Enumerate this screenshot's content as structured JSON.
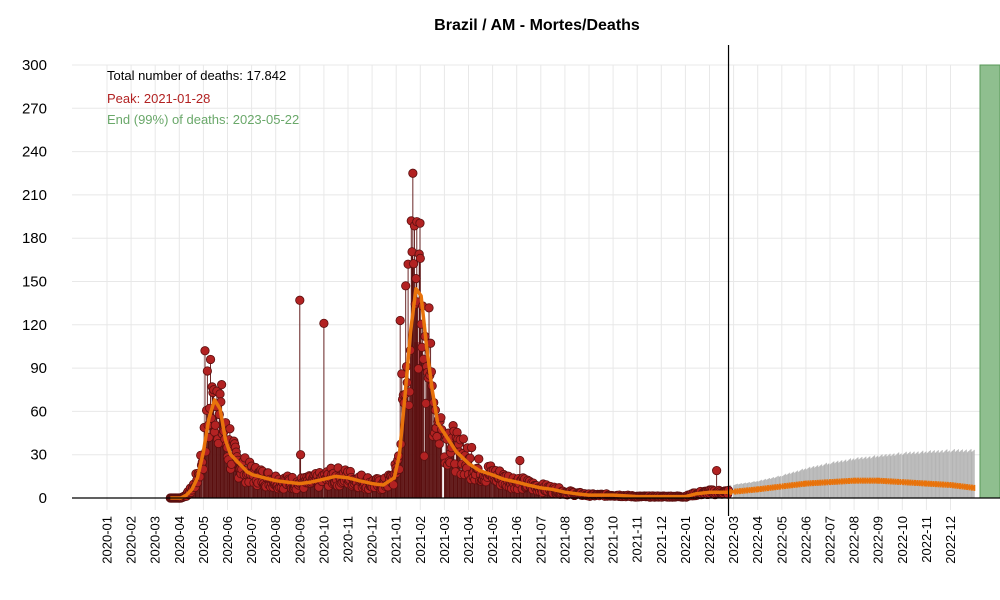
{
  "chart_data": {
    "type": "line",
    "title": "Brazil / AM - Mortes/Deaths",
    "xlabel": "",
    "ylabel": "",
    "ylim": [
      0,
      300
    ],
    "yticks": [
      0,
      30,
      60,
      90,
      120,
      150,
      180,
      210,
      240,
      270,
      300
    ],
    "x_tick_labels": [
      "2020-01",
      "2020-02",
      "2020-03",
      "2020-04",
      "2020-05",
      "2020-06",
      "2020-07",
      "2020-08",
      "2020-09",
      "2020-10",
      "2020-11",
      "2020-12",
      "2021-01",
      "2021-02",
      "2021-03",
      "2021-04",
      "2021-05",
      "2021-06",
      "2021-07",
      "2021-08",
      "2021-09",
      "2021-10",
      "2021-11",
      "2021-12",
      "2022-01",
      "2022-02",
      "2022-03",
      "2022-04",
      "2022-05",
      "2022-06",
      "2022-07",
      "2022-08",
      "2022-09",
      "2022-10",
      "2022-11",
      "2022-12"
    ],
    "grid": true,
    "annotations": {
      "total": "Total number of deaths: 17.842",
      "peak": "Peak: 2021-01-28",
      "end": "End (99%) of deaths: 2023-05-22"
    },
    "peak_date": "2021-01-28",
    "end_date": "2023-05-22",
    "last_observed_date": "2022-02-25",
    "colors": {
      "points": "#b22222",
      "points_border": "#5a0f0f",
      "trend": "#e8730c",
      "peak": "#c0505a",
      "end_band": "#8fbf8f",
      "forecast_band": "#b3b3b3",
      "axis": "#000000",
      "grid": "#e8e8e8"
    },
    "observed_weekly_avg": [
      {
        "date": "2020-03-20",
        "value": 0
      },
      {
        "date": "2020-03-27",
        "value": 0
      },
      {
        "date": "2020-04-03",
        "value": 0
      },
      {
        "date": "2020-04-10",
        "value": 2
      },
      {
        "date": "2020-04-17",
        "value": 6
      },
      {
        "date": "2020-04-24",
        "value": 14
      },
      {
        "date": "2020-05-01",
        "value": 32
      },
      {
        "date": "2020-05-08",
        "value": 55
      },
      {
        "date": "2020-05-15",
        "value": 68
      },
      {
        "date": "2020-05-22",
        "value": 62
      },
      {
        "date": "2020-05-29",
        "value": 40
      },
      {
        "date": "2020-06-05",
        "value": 30
      },
      {
        "date": "2020-06-12",
        "value": 26
      },
      {
        "date": "2020-06-19",
        "value": 22
      },
      {
        "date": "2020-06-26",
        "value": 18
      },
      {
        "date": "2020-07-03",
        "value": 16
      },
      {
        "date": "2020-07-17",
        "value": 14
      },
      {
        "date": "2020-08-01",
        "value": 12
      },
      {
        "date": "2020-08-15",
        "value": 11
      },
      {
        "date": "2020-09-01",
        "value": 10
      },
      {
        "date": "2020-09-15",
        "value": 11
      },
      {
        "date": "2020-10-01",
        "value": 13
      },
      {
        "date": "2020-10-15",
        "value": 15
      },
      {
        "date": "2020-11-01",
        "value": 14
      },
      {
        "date": "2020-11-15",
        "value": 12
      },
      {
        "date": "2020-12-01",
        "value": 10
      },
      {
        "date": "2020-12-15",
        "value": 9
      },
      {
        "date": "2020-12-29",
        "value": 14
      },
      {
        "date": "2021-01-05",
        "value": 30
      },
      {
        "date": "2021-01-12",
        "value": 70
      },
      {
        "date": "2021-01-19",
        "value": 115
      },
      {
        "date": "2021-01-26",
        "value": 145
      },
      {
        "date": "2021-02-02",
        "value": 140
      },
      {
        "date": "2021-02-09",
        "value": 105
      },
      {
        "date": "2021-02-16",
        "value": 75
      },
      {
        "date": "2021-02-23",
        "value": 52
      },
      {
        "date": "2021-03-02",
        "value": 44
      },
      {
        "date": "2021-03-16",
        "value": 32
      },
      {
        "date": "2021-04-01",
        "value": 24
      },
      {
        "date": "2021-04-15",
        "value": 19
      },
      {
        "date": "2021-05-01",
        "value": 16
      },
      {
        "date": "2021-05-15",
        "value": 13
      },
      {
        "date": "2021-06-01",
        "value": 11
      },
      {
        "date": "2021-06-15",
        "value": 9
      },
      {
        "date": "2021-07-01",
        "value": 7
      },
      {
        "date": "2021-07-15",
        "value": 6
      },
      {
        "date": "2021-08-01",
        "value": 4
      },
      {
        "date": "2021-08-15",
        "value": 3
      },
      {
        "date": "2021-09-01",
        "value": 2
      },
      {
        "date": "2021-10-01",
        "value": 2
      },
      {
        "date": "2021-11-01",
        "value": 1
      },
      {
        "date": "2021-12-01",
        "value": 1
      },
      {
        "date": "2022-01-01",
        "value": 1
      },
      {
        "date": "2022-01-15",
        "value": 3
      },
      {
        "date": "2022-02-01",
        "value": 4
      },
      {
        "date": "2022-02-25",
        "value": 4
      }
    ],
    "observed_outliers": [
      {
        "date": "2020-05-03",
        "value": 102
      },
      {
        "date": "2020-05-06",
        "value": 88
      },
      {
        "date": "2020-05-10",
        "value": 96
      },
      {
        "date": "2020-05-14",
        "value": 75
      },
      {
        "date": "2020-05-18",
        "value": 74
      },
      {
        "date": "2020-06-04",
        "value": 48
      },
      {
        "date": "2020-09-01",
        "value": 137
      },
      {
        "date": "2020-09-02",
        "value": 30
      },
      {
        "date": "2020-10-01",
        "value": 121
      },
      {
        "date": "2021-01-06",
        "value": 123
      },
      {
        "date": "2021-01-08",
        "value": 86
      },
      {
        "date": "2021-01-13",
        "value": 147
      },
      {
        "date": "2021-01-16",
        "value": 162
      },
      {
        "date": "2021-01-20",
        "value": 192
      },
      {
        "date": "2021-01-22",
        "value": 225
      },
      {
        "date": "2021-01-26",
        "value": 152
      },
      {
        "date": "2021-01-30",
        "value": 169
      },
      {
        "date": "2021-02-01",
        "value": 166
      },
      {
        "date": "2021-02-04",
        "value": 133
      },
      {
        "date": "2021-02-07",
        "value": 112
      },
      {
        "date": "2021-02-10",
        "value": 87
      },
      {
        "date": "2021-02-13",
        "value": 85
      },
      {
        "date": "2021-02-06",
        "value": 29
      },
      {
        "date": "2021-03-25",
        "value": 41
      },
      {
        "date": "2021-04-05",
        "value": 35
      },
      {
        "date": "2021-06-05",
        "value": 26
      },
      {
        "date": "2022-02-10",
        "value": 19
      }
    ],
    "forecast_trend": [
      {
        "date": "2022-02-25",
        "value": 4
      },
      {
        "date": "2022-04-01",
        "value": 6
      },
      {
        "date": "2022-05-01",
        "value": 8
      },
      {
        "date": "2022-06-01",
        "value": 10
      },
      {
        "date": "2022-07-01",
        "value": 11
      },
      {
        "date": "2022-08-01",
        "value": 12
      },
      {
        "date": "2022-09-01",
        "value": 12
      },
      {
        "date": "2022-10-01",
        "value": 11
      },
      {
        "date": "2022-11-01",
        "value": 10
      },
      {
        "date": "2022-12-01",
        "value": 9
      },
      {
        "date": "2022-12-31",
        "value": 7
      }
    ],
    "forecast_upper": [
      {
        "date": "2022-02-25",
        "value": 9
      },
      {
        "date": "2022-04-01",
        "value": 12
      },
      {
        "date": "2022-05-01",
        "value": 16
      },
      {
        "date": "2022-06-01",
        "value": 21
      },
      {
        "date": "2022-07-01",
        "value": 25
      },
      {
        "date": "2022-08-01",
        "value": 28
      },
      {
        "date": "2022-09-01",
        "value": 30
      },
      {
        "date": "2022-10-01",
        "value": 32
      },
      {
        "date": "2022-11-01",
        "value": 33
      },
      {
        "date": "2022-12-01",
        "value": 34
      },
      {
        "date": "2022-12-31",
        "value": 34
      }
    ],
    "forecast_lower": [
      {
        "date": "2022-02-25",
        "value": 0
      },
      {
        "date": "2022-12-31",
        "value": 0
      }
    ]
  }
}
